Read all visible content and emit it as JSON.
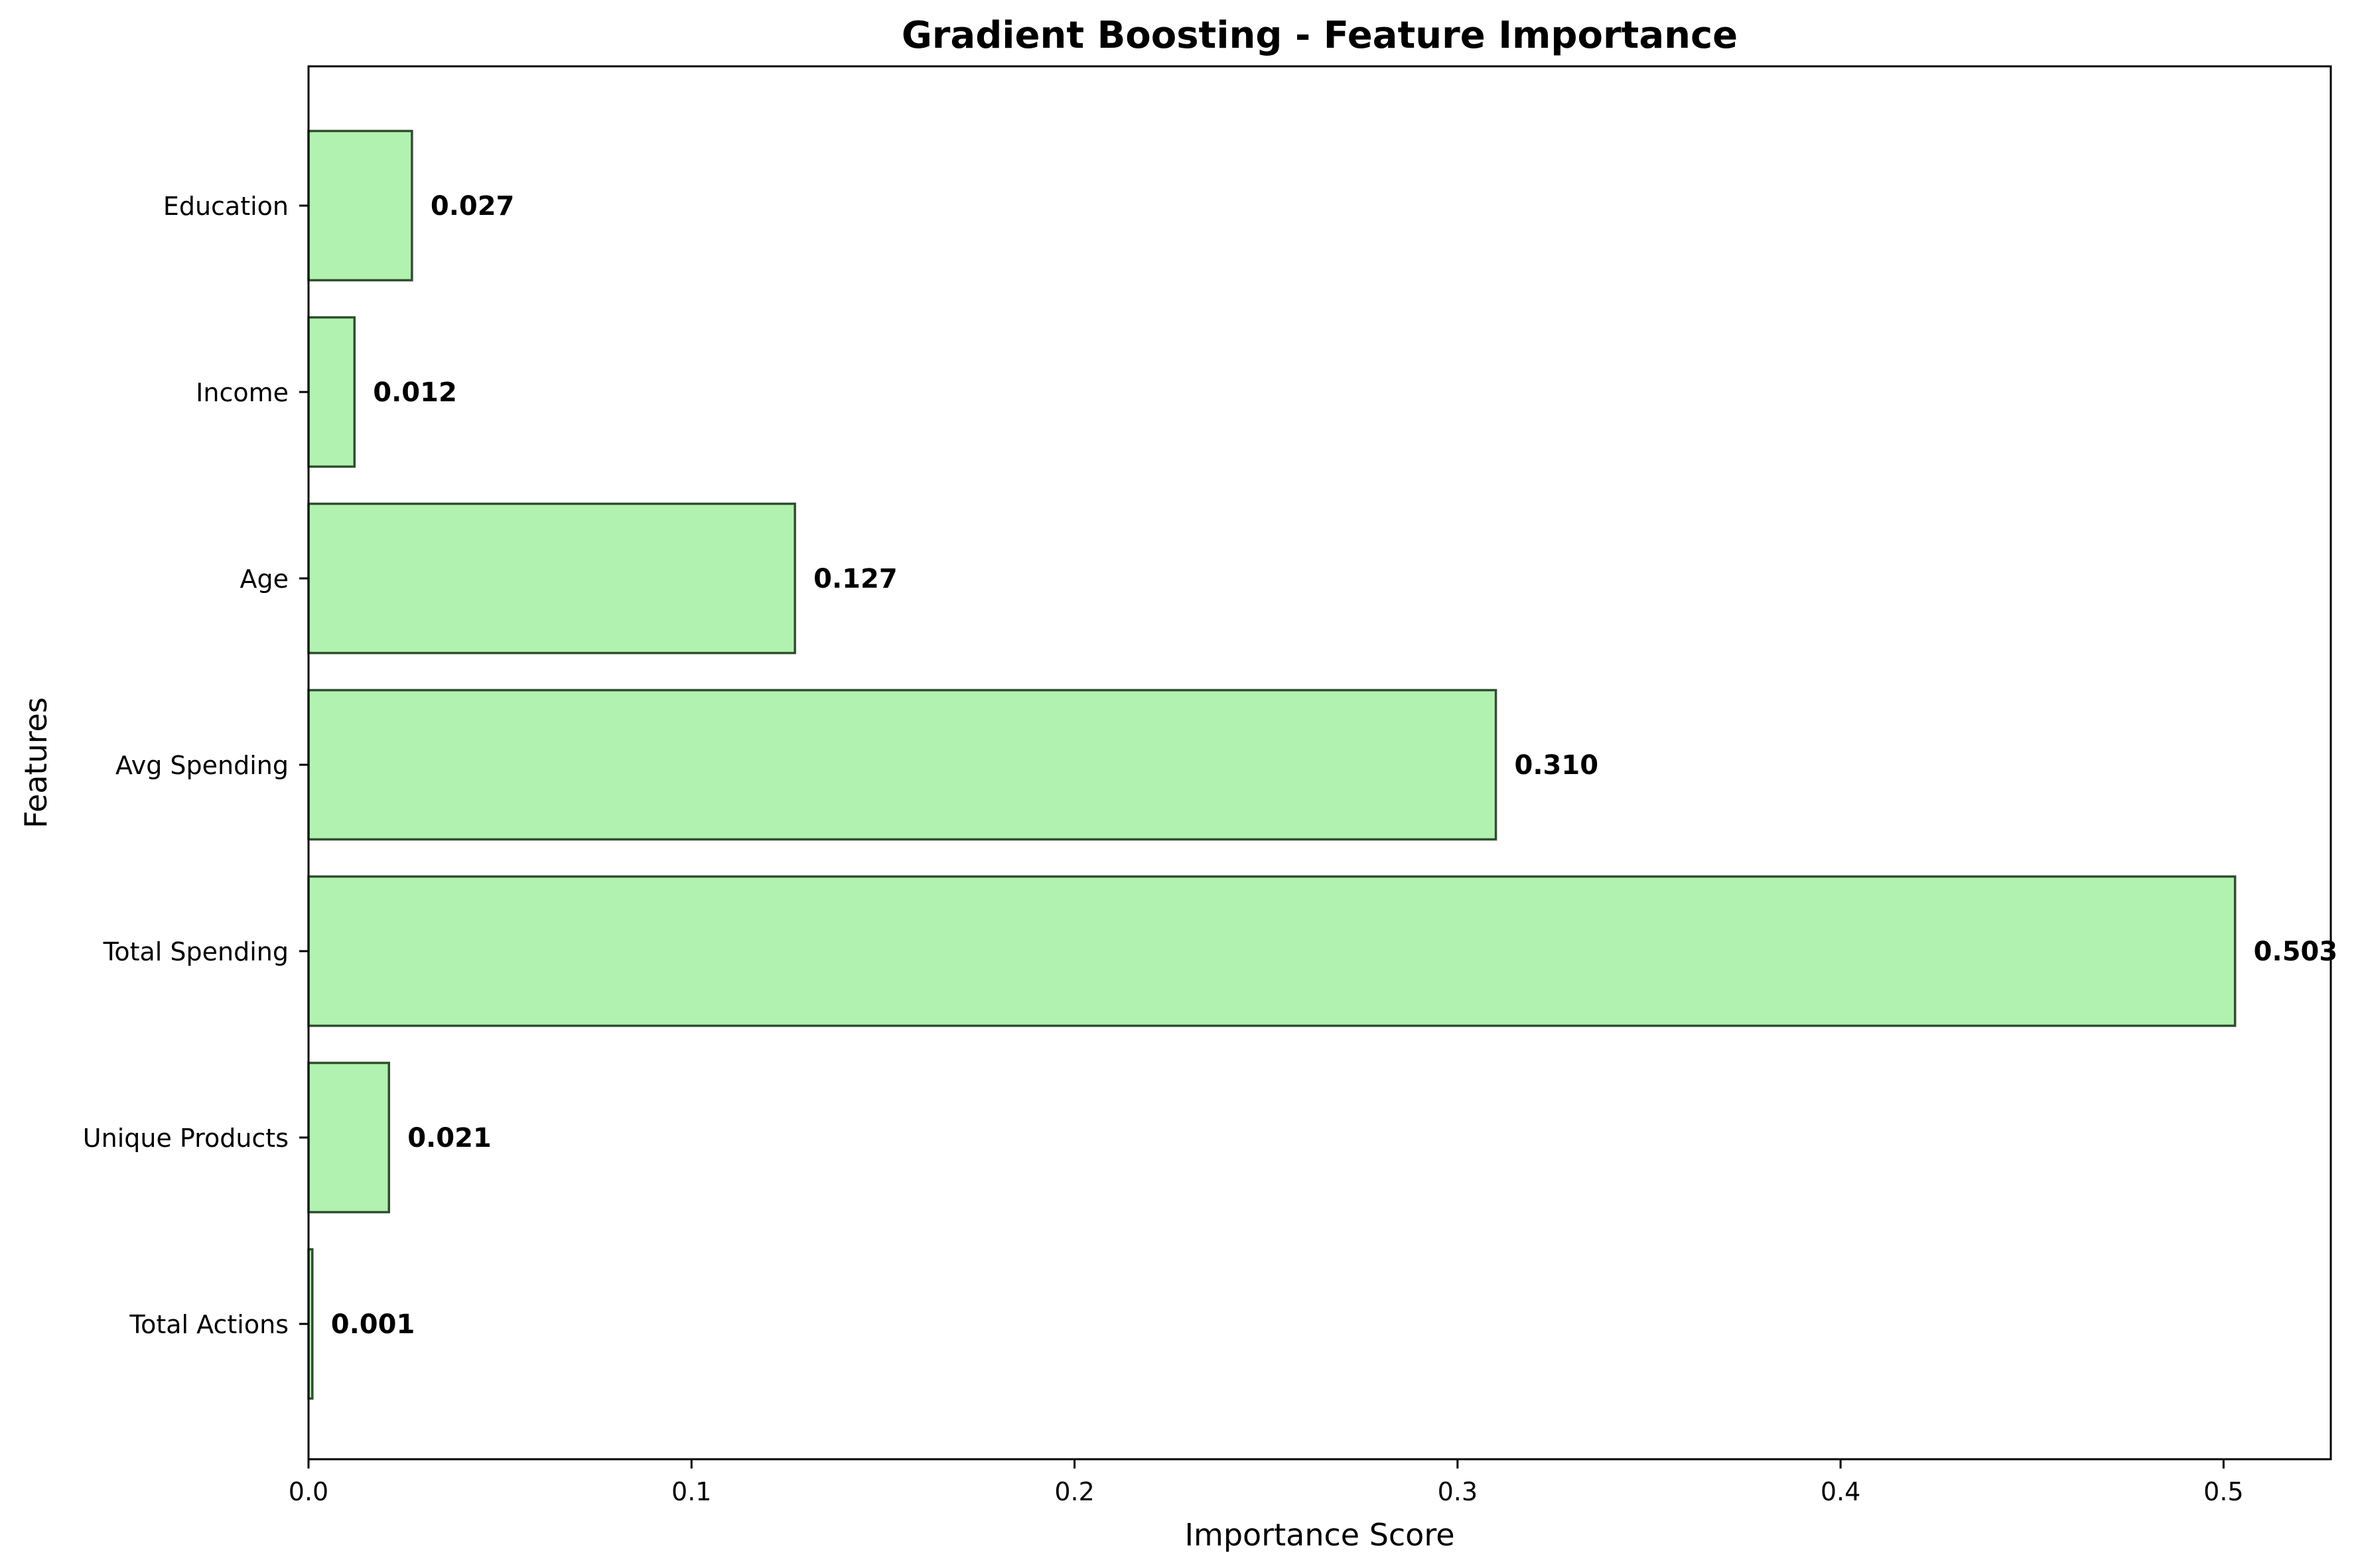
{
  "chart_data": {
    "type": "bar",
    "orientation": "horizontal",
    "title": "Gradient Boosting - Feature Importance",
    "xlabel": "Importance Score",
    "ylabel": "Features",
    "categories": [
      "Total Actions",
      "Unique Products",
      "Total Spending",
      "Avg Spending",
      "Age",
      "Income",
      "Education"
    ],
    "values": [
      0.001,
      0.021,
      0.503,
      0.31,
      0.127,
      0.012,
      0.027
    ],
    "value_labels": [
      "0.001",
      "0.021",
      "0.503",
      "0.310",
      "0.127",
      "0.012",
      "0.027"
    ],
    "xlim": [
      0,
      0.528
    ],
    "xticks": [
      0.0,
      0.1,
      0.2,
      0.3,
      0.4,
      0.5
    ],
    "xtick_labels": [
      "0.0",
      "0.1",
      "0.2",
      "0.3",
      "0.4",
      "0.5"
    ],
    "grid": false,
    "legend": "none",
    "colors": {
      "bar_fill": "#b2f2b0",
      "bar_edge": "#2f4f2f",
      "axes": "#000000"
    }
  }
}
